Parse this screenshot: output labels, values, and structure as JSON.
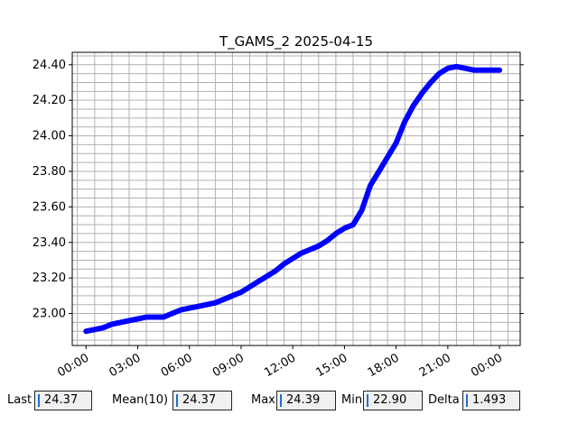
{
  "chart_data": {
    "type": "line",
    "title": "T_GAMS_2 2025-04-15",
    "xlabel": "",
    "ylabel": "",
    "x_ticks": [
      "00:00",
      "03:00",
      "06:00",
      "09:00",
      "12:00",
      "15:00",
      "18:00",
      "21:00",
      "00:00"
    ],
    "y_ticks": [
      "23.00",
      "23.20",
      "23.40",
      "23.60",
      "23.80",
      "24.00",
      "24.20",
      "24.40"
    ],
    "xlim_hours": [
      -0.8,
      25.2
    ],
    "ylim": [
      22.82,
      24.47
    ],
    "grid": true,
    "series": [
      {
        "color": "#0000ff",
        "x_hours": [
          0.0,
          0.5,
          1.0,
          1.5,
          2.0,
          2.5,
          3.0,
          3.5,
          4.0,
          4.5,
          5.0,
          5.5,
          6.0,
          6.5,
          7.0,
          7.5,
          8.0,
          8.5,
          9.0,
          9.5,
          10.0,
          10.5,
          11.0,
          11.5,
          12.0,
          12.5,
          13.0,
          13.5,
          14.0,
          14.5,
          15.0,
          15.5,
          16.0,
          16.5,
          17.0,
          17.5,
          18.0,
          18.5,
          19.0,
          19.5,
          20.0,
          20.5,
          21.0,
          21.5,
          22.0,
          22.5,
          23.0,
          23.5,
          24.0
        ],
        "values": [
          22.9,
          22.91,
          22.92,
          22.94,
          22.95,
          22.96,
          22.97,
          22.98,
          22.98,
          22.98,
          23.0,
          23.02,
          23.03,
          23.04,
          23.05,
          23.06,
          23.08,
          23.1,
          23.12,
          23.15,
          23.18,
          23.21,
          23.24,
          23.28,
          23.31,
          23.34,
          23.36,
          23.38,
          23.41,
          23.45,
          23.48,
          23.5,
          23.58,
          23.72,
          23.8,
          23.88,
          23.96,
          24.08,
          24.17,
          24.24,
          24.3,
          24.35,
          24.38,
          24.39,
          24.38,
          24.37,
          24.37,
          24.37,
          24.37
        ]
      }
    ]
  },
  "stats": [
    {
      "label": "Last",
      "value": "24.37"
    },
    {
      "label": "Mean(10)",
      "value": "24.37"
    },
    {
      "label": "Max",
      "value": "24.39"
    },
    {
      "label": "Min",
      "value": "22.90"
    },
    {
      "label": "Delta",
      "value": "1.493"
    }
  ]
}
